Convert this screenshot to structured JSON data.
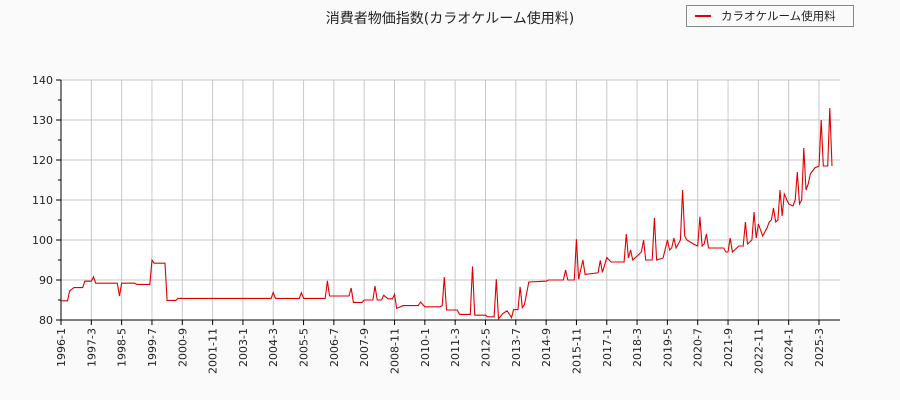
{
  "title": "消費者物価指数(カラオケルーム使用料)",
  "legend": {
    "label": "カラオケルーム使用料",
    "color": "#e00000"
  },
  "colors": {
    "line": "#e00000",
    "grid": "#c8c8c8",
    "axis": "#000000",
    "background": "#fafafa",
    "plot_background": "#ffffff"
  },
  "chart_data": {
    "type": "line",
    "title": "消費者物価指数(カラオケルーム使用料)",
    "xlabel": "",
    "ylabel": "",
    "ylim": [
      80,
      140
    ],
    "yticks": [
      80,
      90,
      100,
      110,
      120,
      130,
      140
    ],
    "xticks": [
      "1996-1",
      "1997-3",
      "1998-5",
      "1999-7",
      "2000-9",
      "2001-11",
      "2003-1",
      "2004-3",
      "2005-5",
      "2006-7",
      "2007-9",
      "2008-11",
      "2010-1",
      "2011-3",
      "2012-5",
      "2013-7",
      "2014-9",
      "2015-11",
      "2017-1",
      "2018-3",
      "2019-5",
      "2020-7",
      "2021-9",
      "2022-11",
      "2024-1",
      "2025-3"
    ],
    "grid": true,
    "legend_position": "top-right",
    "series": [
      {
        "name": "カラオケルーム使用料",
        "points": [
          [
            "1996-1",
            84.8
          ],
          [
            "1996-4",
            84.8
          ],
          [
            "1996-5",
            87.3
          ],
          [
            "1996-7",
            88.1
          ],
          [
            "1996-11",
            88.1
          ],
          [
            "1996-12",
            89.7
          ],
          [
            "1997-3",
            89.7
          ],
          [
            "1997-4",
            90.8
          ],
          [
            "1997-5",
            89.2
          ],
          [
            "1998-3",
            89.2
          ],
          [
            "1998-4",
            86.0
          ],
          [
            "1998-5",
            89.2
          ],
          [
            "1998-11",
            89.2
          ],
          [
            "1998-12",
            88.9
          ],
          [
            "1999-6",
            88.9
          ],
          [
            "1999-7",
            95.0
          ],
          [
            "1999-8",
            94.2
          ],
          [
            "2000-1",
            94.2
          ],
          [
            "2000-2",
            84.9
          ],
          [
            "2000-6",
            84.9
          ],
          [
            "2000-7",
            85.4
          ],
          [
            "2004-2",
            85.4
          ],
          [
            "2004-3",
            86.9
          ],
          [
            "2004-4",
            85.4
          ],
          [
            "2005-3",
            85.4
          ],
          [
            "2005-4",
            86.8
          ],
          [
            "2005-5",
            85.4
          ],
          [
            "2006-3",
            85.4
          ],
          [
            "2006-4",
            89.8
          ],
          [
            "2006-5",
            86.0
          ],
          [
            "2007-2",
            86.0
          ],
          [
            "2007-3",
            88.0
          ],
          [
            "2007-4",
            84.4
          ],
          [
            "2007-8",
            84.4
          ],
          [
            "2007-9",
            85.0
          ],
          [
            "2008-1",
            85.0
          ],
          [
            "2008-2",
            88.5
          ],
          [
            "2008-3",
            85.0
          ],
          [
            "2008-5",
            85.0
          ],
          [
            "2008-6",
            86.2
          ],
          [
            "2008-8",
            85.3
          ],
          [
            "2008-10",
            85.3
          ],
          [
            "2008-11",
            86.4
          ],
          [
            "2008-12",
            82.9
          ],
          [
            "2009-3",
            83.6
          ],
          [
            "2009-10",
            83.6
          ],
          [
            "2009-11",
            84.5
          ],
          [
            "2010-1",
            83.3
          ],
          [
            "2010-8",
            83.3
          ],
          [
            "2010-9",
            83.6
          ],
          [
            "2010-10",
            90.7
          ],
          [
            "2010-11",
            82.5
          ],
          [
            "2011-4",
            82.5
          ],
          [
            "2011-5",
            81.4
          ],
          [
            "2011-10",
            81.4
          ],
          [
            "2011-11",
            93.4
          ],
          [
            "2011-12",
            81.2
          ],
          [
            "2012-5",
            81.2
          ],
          [
            "2012-6",
            80.8
          ],
          [
            "2012-9",
            80.8
          ],
          [
            "2012-10",
            90.2
          ],
          [
            "2012-11",
            80.3
          ],
          [
            "2013-1",
            81.6
          ],
          [
            "2013-3",
            82.3
          ],
          [
            "2013-5",
            80.6
          ],
          [
            "2013-6",
            82.6
          ],
          [
            "2013-8",
            82.6
          ],
          [
            "2013-9",
            88.3
          ],
          [
            "2013-10",
            83.1
          ],
          [
            "2013-11",
            83.9
          ],
          [
            "2014-1",
            89.5
          ],
          [
            "2014-9",
            89.7
          ],
          [
            "2014-10",
            90.0
          ],
          [
            "2015-5",
            90.0
          ],
          [
            "2015-6",
            92.5
          ],
          [
            "2015-7",
            90.0
          ],
          [
            "2015-10",
            90.0
          ],
          [
            "2015-11",
            100.2
          ],
          [
            "2015-12",
            90.2
          ],
          [
            "2016-2",
            95.0
          ],
          [
            "2016-3",
            91.4
          ],
          [
            "2016-9",
            91.8
          ],
          [
            "2016-10",
            94.9
          ],
          [
            "2016-11",
            91.9
          ],
          [
            "2017-1",
            95.6
          ],
          [
            "2017-3",
            94.5
          ],
          [
            "2017-9",
            94.5
          ],
          [
            "2017-10",
            101.5
          ],
          [
            "2017-11",
            95.5
          ],
          [
            "2017-12",
            97.5
          ],
          [
            "2018-1",
            95.0
          ],
          [
            "2018-3",
            96.0
          ],
          [
            "2018-5",
            97.0
          ],
          [
            "2018-6",
            100.0
          ],
          [
            "2018-7",
            95.0
          ],
          [
            "2018-10",
            95.0
          ],
          [
            "2018-11",
            105.5
          ],
          [
            "2018-12",
            95.0
          ],
          [
            "2019-3",
            95.5
          ],
          [
            "2019-5",
            100.0
          ],
          [
            "2019-6",
            97.5
          ],
          [
            "2019-7",
            98.0
          ],
          [
            "2019-8",
            100.5
          ],
          [
            "2019-9",
            98.0
          ],
          [
            "2019-11",
            100.0
          ],
          [
            "2019-12",
            112.5
          ],
          [
            "2020-1",
            101.0
          ],
          [
            "2020-2",
            100.0
          ],
          [
            "2020-5",
            99.0
          ],
          [
            "2020-7",
            98.5
          ],
          [
            "2020-8",
            105.8
          ],
          [
            "2020-9",
            98.5
          ],
          [
            "2020-10",
            99.0
          ],
          [
            "2020-11",
            101.5
          ],
          [
            "2020-12",
            98.0
          ],
          [
            "2021-7",
            98.0
          ],
          [
            "2021-8",
            97.0
          ],
          [
            "2021-9",
            97.0
          ],
          [
            "2021-10",
            100.5
          ],
          [
            "2021-11",
            97.0
          ],
          [
            "2022-2",
            98.5
          ],
          [
            "2022-4",
            98.5
          ],
          [
            "2022-5",
            104.5
          ],
          [
            "2022-6",
            99.0
          ],
          [
            "2022-8",
            100.0
          ],
          [
            "2022-9",
            107.0
          ],
          [
            "2022-10",
            100.5
          ],
          [
            "2022-11",
            104.0
          ],
          [
            "2023-1",
            101.0
          ],
          [
            "2023-3",
            103.0
          ],
          [
            "2023-4",
            104.5
          ],
          [
            "2023-5",
            105.0
          ],
          [
            "2023-6",
            108.0
          ],
          [
            "2023-7",
            104.5
          ],
          [
            "2023-8",
            105.0
          ],
          [
            "2023-9",
            112.5
          ],
          [
            "2023-10",
            106.0
          ],
          [
            "2023-11",
            111.5
          ],
          [
            "2024-1",
            109.0
          ],
          [
            "2024-3",
            108.5
          ],
          [
            "2024-4",
            110.0
          ],
          [
            "2024-5",
            117.0
          ],
          [
            "2024-6",
            109.0
          ],
          [
            "2024-7",
            110.0
          ],
          [
            "2024-8",
            123.0
          ],
          [
            "2024-9",
            112.5
          ],
          [
            "2024-10",
            114.0
          ],
          [
            "2024-11",
            116.5
          ],
          [
            "2025-1",
            118.0
          ],
          [
            "2025-3",
            118.5
          ],
          [
            "2025-4",
            130.0
          ],
          [
            "2025-5",
            118.5
          ],
          [
            "2025-7",
            118.5
          ],
          [
            "2025-8",
            133.0
          ],
          [
            "2025-9",
            118.5
          ]
        ]
      }
    ]
  }
}
